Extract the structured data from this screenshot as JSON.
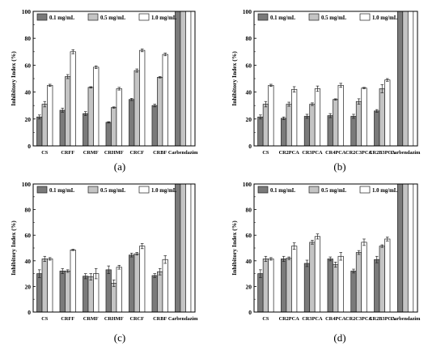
{
  "chart_data": [
    {
      "type": "bar",
      "panel_label": "(a)",
      "ylabel": "Inhibitory Index (%)",
      "ylim": [
        0,
        100
      ],
      "yticks": [
        0,
        20,
        40,
        60,
        80,
        100
      ],
      "legend_position": "top-left",
      "categories": [
        "CS",
        "CRFF",
        "CRMF",
        "CRHMF",
        "CRCF",
        "CRBF",
        "Carbendazim"
      ],
      "series": [
        {
          "name": "0.1 mg/mL",
          "color": "#7a7a7a",
          "values": [
            21.5,
            26.5,
            24,
            17.5,
            34.5,
            30,
            100
          ],
          "errors": [
            1.5,
            1.5,
            1.5,
            0.5,
            0.8,
            1,
            0
          ]
        },
        {
          "name": "0.5 mg/mL",
          "color": "#c4c4c4",
          "values": [
            31,
            51.5,
            43.5,
            28.5,
            56,
            51,
            100
          ],
          "errors": [
            2,
            1.5,
            0.5,
            0.5,
            1.2,
            0.5,
            0
          ]
        },
        {
          "name": "1.0 mg/mL",
          "color": "#ffffff",
          "values": [
            45,
            70,
            58.5,
            42.5,
            71,
            68,
            100
          ],
          "errors": [
            0.8,
            1.5,
            1,
            1,
            1,
            1,
            0
          ]
        }
      ]
    },
    {
      "type": "bar",
      "panel_label": "(b)",
      "ylabel": "Inhibitory Index (%)",
      "ylim": [
        0,
        100
      ],
      "yticks": [
        0,
        20,
        40,
        60,
        80,
        100
      ],
      "legend_position": "top-left",
      "categories": [
        "CS",
        "CR2PCA",
        "CR3PCA",
        "CR4PCA",
        "CR2C3PCA",
        "CR2B3PCA",
        "Carbendazim"
      ],
      "series": [
        {
          "name": "0.1 mg/mL",
          "color": "#7a7a7a",
          "values": [
            21.5,
            20.5,
            22,
            22.5,
            22,
            26,
            100
          ],
          "errors": [
            1.5,
            1,
            1.5,
            1.5,
            1.5,
            1,
            0
          ]
        },
        {
          "name": "0.5 mg/mL",
          "color": "#c4c4c4",
          "values": [
            31,
            31,
            31,
            34.5,
            33,
            42.5,
            100
          ],
          "errors": [
            2,
            1.5,
            1,
            0.5,
            2,
            3,
            0
          ]
        },
        {
          "name": "1.0 mg/mL",
          "color": "#ffffff",
          "values": [
            45,
            42,
            42.5,
            45,
            43,
            49,
            100
          ],
          "errors": [
            0.8,
            2,
            2,
            1.5,
            0.5,
            1,
            0
          ]
        }
      ]
    },
    {
      "type": "bar",
      "panel_label": "(c)",
      "ylabel": "Inhibitory Index (%)",
      "ylim": [
        0,
        100
      ],
      "yticks": [
        0,
        20,
        40,
        60,
        80,
        100
      ],
      "legend_position": "top-left",
      "categories": [
        "CS",
        "CRFF",
        "CRMF",
        "CRHMF",
        "CRCF",
        "CRBF",
        "Carbendazim"
      ],
      "series": [
        {
          "name": "0.1 mg/mL",
          "color": "#7a7a7a",
          "values": [
            30,
            32,
            28,
            33,
            44.5,
            28.5,
            100
          ],
          "errors": [
            3,
            2,
            2,
            3,
            1.5,
            1.5,
            0
          ]
        },
        {
          "name": "0.5 mg/mL",
          "color": "#c4c4c4",
          "values": [
            41.5,
            32,
            27.5,
            22.5,
            45.5,
            31.5,
            100
          ],
          "errors": [
            2,
            1,
            2.5,
            2.5,
            1,
            2.5,
            0
          ]
        },
        {
          "name": "1.0 mg/mL",
          "color": "#ffffff",
          "values": [
            41.5,
            48.5,
            30,
            35,
            51.5,
            41,
            100
          ],
          "errors": [
            1,
            0.5,
            4,
            1.5,
            2,
            3,
            0
          ]
        }
      ]
    },
    {
      "type": "bar",
      "panel_label": "(d)",
      "ylabel": "Inhibitory Index (%)",
      "ylim": [
        0,
        100
      ],
      "yticks": [
        0,
        20,
        40,
        60,
        80,
        100
      ],
      "legend_position": "top-left",
      "categories": [
        "CS",
        "CR2PCA",
        "CR3PCA",
        "CR4PCA",
        "CR2C3PCA",
        "CR2B3PCA",
        "Carbendazim"
      ],
      "series": [
        {
          "name": "0.1 mg/mL",
          "color": "#7a7a7a",
          "values": [
            30,
            41.5,
            38,
            41.5,
            32,
            41,
            100
          ],
          "errors": [
            3,
            2,
            2.5,
            1.5,
            1.5,
            2.5,
            0
          ]
        },
        {
          "name": "0.5 mg/mL",
          "color": "#c4c4c4",
          "values": [
            41.5,
            42,
            54.5,
            37,
            46.5,
            51.5,
            100
          ],
          "errors": [
            2,
            1,
            1.5,
            2,
            1.5,
            1,
            0
          ]
        },
        {
          "name": "1.0 mg/mL",
          "color": "#ffffff",
          "values": [
            41.5,
            51.5,
            59,
            43.5,
            54.5,
            57,
            100
          ],
          "errors": [
            1,
            2.5,
            2,
            3,
            2.5,
            1.5,
            0
          ]
        }
      ]
    }
  ]
}
